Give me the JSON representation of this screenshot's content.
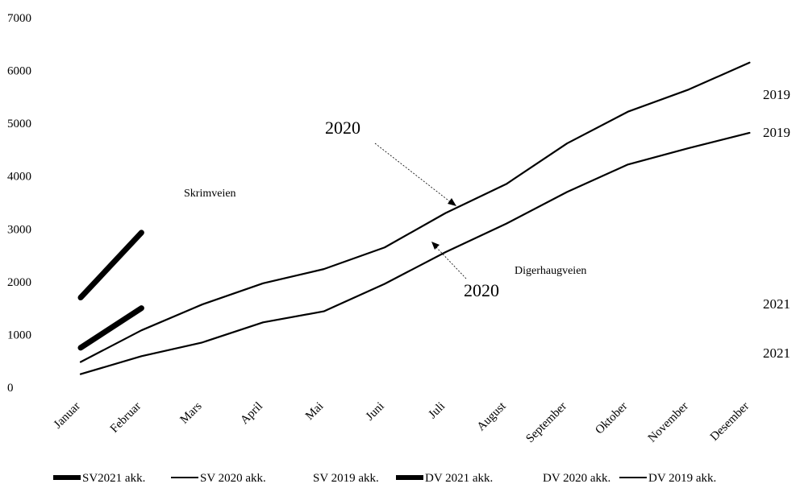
{
  "chart_data": {
    "type": "line",
    "categories": [
      "Januar",
      "Februar",
      "Mars",
      "April",
      "Mai",
      "Juni",
      "Juli",
      "August",
      "September",
      "Oktober",
      "November",
      "Desember"
    ],
    "yticks": [
      "0",
      "1000",
      "2000",
      "3000",
      "4000",
      "5000",
      "6000",
      "7000"
    ],
    "ylim": [
      0,
      7000
    ],
    "grid": false,
    "legend_position": "bottom",
    "series": [
      {
        "name": "SV2021 akk.",
        "values": [
          1700,
          2930,
          null,
          null,
          null,
          null,
          null,
          null,
          null,
          null,
          null,
          null
        ],
        "style": "thick"
      },
      {
        "name": "SV 2020 akk.",
        "values": [
          480,
          1080,
          1570,
          1970,
          2240,
          2650,
          3300,
          3850,
          4620,
          5220,
          5640,
          6150
        ],
        "style": "thin"
      },
      {
        "name": "SV 2019 akk.",
        "values": [
          null,
          null,
          null,
          null,
          null,
          null,
          null,
          null,
          null,
          null,
          null,
          null
        ],
        "style": "none"
      },
      {
        "name": "DV 2021 akk.",
        "values": [
          750,
          1500,
          null,
          null,
          null,
          null,
          null,
          null,
          null,
          null,
          null,
          null
        ],
        "style": "thick"
      },
      {
        "name": "DV 2020 akk.",
        "values": [
          null,
          null,
          null,
          null,
          null,
          null,
          null,
          null,
          null,
          null,
          null,
          null
        ],
        "style": "none"
      },
      {
        "name": "DV 2019 akk.",
        "values": [
          250,
          590,
          850,
          1230,
          1440,
          1960,
          2560,
          3100,
          3700,
          4220,
          4530,
          4820
        ],
        "style": "thin"
      }
    ],
    "annotations": {
      "skrimveien": "Skrimveien",
      "digerhaugveien": "Digerhaugveien",
      "label_2020_top": "2020",
      "label_2020_mid": "2020",
      "end_2019_a": "2019",
      "end_2019_b": "2019",
      "end_2021_a": "2021",
      "end_2021_b": "2021"
    }
  }
}
